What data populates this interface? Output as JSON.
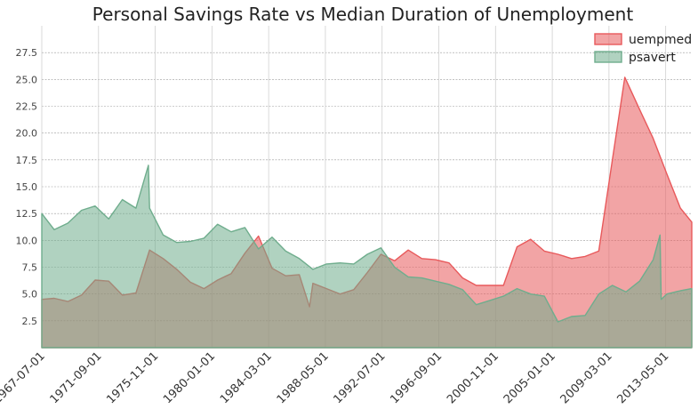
{
  "chart_data": {
    "type": "area",
    "title": "Personal Savings Rate vs Median Duration of Unemployment",
    "xlabel": "",
    "ylabel": "",
    "xlim": [
      "1967-07-01",
      "2015-04-01"
    ],
    "ylim": [
      0,
      30
    ],
    "x_ticks": [
      "1967-07-01",
      "1971-09-01",
      "1975-11-01",
      "1980-01-01",
      "1984-03-01",
      "1988-05-01",
      "1992-07-01",
      "1996-09-01",
      "2000-11-01",
      "2005-01-01",
      "2009-03-01",
      "2013-05-01"
    ],
    "y_ticks": [
      "2.5",
      "5.0",
      "7.5",
      "10.0",
      "12.5",
      "15.0",
      "17.5",
      "20.0",
      "22.5",
      "25.0",
      "27.5"
    ],
    "grid": true,
    "legend_position": "top-right",
    "series": [
      {
        "name": "uempmed",
        "color": "#e8595b",
        "points": [
          [
            "1967-07-01",
            4.5
          ],
          [
            "1968-06-01",
            4.6
          ],
          [
            "1969-06-01",
            4.3
          ],
          [
            "1970-06-01",
            4.9
          ],
          [
            "1971-06-01",
            6.3
          ],
          [
            "1972-06-01",
            6.2
          ],
          [
            "1973-06-01",
            4.9
          ],
          [
            "1974-06-01",
            5.1
          ],
          [
            "1975-06-01",
            9.1
          ],
          [
            "1976-06-01",
            8.3
          ],
          [
            "1977-06-01",
            7.3
          ],
          [
            "1978-06-01",
            6.1
          ],
          [
            "1979-06-01",
            5.5
          ],
          [
            "1980-06-01",
            6.3
          ],
          [
            "1981-06-01",
            6.9
          ],
          [
            "1982-06-01",
            8.8
          ],
          [
            "1983-06-01",
            10.4
          ],
          [
            "1984-06-01",
            7.4
          ],
          [
            "1985-06-01",
            6.7
          ],
          [
            "1986-06-01",
            6.8
          ],
          [
            "1987-03-01",
            3.8
          ],
          [
            "1987-06-01",
            6.0
          ],
          [
            "1988-06-01",
            5.5
          ],
          [
            "1989-06-01",
            5.0
          ],
          [
            "1990-06-01",
            5.4
          ],
          [
            "1991-06-01",
            7.0
          ],
          [
            "1992-06-01",
            8.7
          ],
          [
            "1993-06-01",
            8.1
          ],
          [
            "1994-06-01",
            9.1
          ],
          [
            "1995-06-01",
            8.3
          ],
          [
            "1996-06-01",
            8.2
          ],
          [
            "1997-06-01",
            7.9
          ],
          [
            "1998-06-01",
            6.5
          ],
          [
            "1999-06-01",
            5.8
          ],
          [
            "2000-06-01",
            5.8
          ],
          [
            "2001-06-01",
            5.8
          ],
          [
            "2002-06-01",
            9.4
          ],
          [
            "2003-06-01",
            10.1
          ],
          [
            "2004-06-01",
            9.0
          ],
          [
            "2005-06-01",
            8.7
          ],
          [
            "2006-06-01",
            8.3
          ],
          [
            "2007-06-01",
            8.5
          ],
          [
            "2008-06-01",
            9.0
          ],
          [
            "2009-06-01",
            17.5
          ],
          [
            "2010-05-01",
            25.2
          ],
          [
            "2011-06-01",
            22.2
          ],
          [
            "2012-06-01",
            19.5
          ],
          [
            "2013-06-01",
            16.2
          ],
          [
            "2014-06-01",
            13.0
          ],
          [
            "2015-04-01",
            11.7
          ]
        ]
      },
      {
        "name": "psavert",
        "color": "#6fad8d",
        "points": [
          [
            "1967-07-01",
            12.5
          ],
          [
            "1968-06-01",
            11.0
          ],
          [
            "1969-06-01",
            11.6
          ],
          [
            "1970-06-01",
            12.8
          ],
          [
            "1971-06-01",
            13.2
          ],
          [
            "1972-06-01",
            12.0
          ],
          [
            "1973-06-01",
            13.8
          ],
          [
            "1974-06-01",
            13.0
          ],
          [
            "1975-05-01",
            17.0
          ],
          [
            "1975-06-01",
            13.0
          ],
          [
            "1976-06-01",
            10.5
          ],
          [
            "1977-06-01",
            9.8
          ],
          [
            "1978-06-01",
            9.9
          ],
          [
            "1979-06-01",
            10.2
          ],
          [
            "1980-06-01",
            11.5
          ],
          [
            "1981-06-01",
            10.8
          ],
          [
            "1982-06-01",
            11.2
          ],
          [
            "1983-06-01",
            9.2
          ],
          [
            "1984-06-01",
            10.3
          ],
          [
            "1985-06-01",
            9.0
          ],
          [
            "1986-06-01",
            8.3
          ],
          [
            "1987-06-01",
            7.3
          ],
          [
            "1988-06-01",
            7.8
          ],
          [
            "1989-06-01",
            7.9
          ],
          [
            "1990-06-01",
            7.8
          ],
          [
            "1991-06-01",
            8.7
          ],
          [
            "1992-06-01",
            9.3
          ],
          [
            "1993-06-01",
            7.5
          ],
          [
            "1994-06-01",
            6.6
          ],
          [
            "1995-06-01",
            6.5
          ],
          [
            "1996-06-01",
            6.2
          ],
          [
            "1997-06-01",
            5.9
          ],
          [
            "1998-06-01",
            5.4
          ],
          [
            "1999-06-01",
            4.0
          ],
          [
            "2000-06-01",
            4.4
          ],
          [
            "2001-06-01",
            4.8
          ],
          [
            "2002-06-01",
            5.5
          ],
          [
            "2003-06-01",
            5.0
          ],
          [
            "2004-06-01",
            4.8
          ],
          [
            "2005-06-01",
            2.4
          ],
          [
            "2006-06-01",
            2.9
          ],
          [
            "2007-06-01",
            3.0
          ],
          [
            "2008-06-01",
            5.0
          ],
          [
            "2009-06-01",
            5.8
          ],
          [
            "2010-06-01",
            5.2
          ],
          [
            "2011-06-01",
            6.2
          ],
          [
            "2012-06-01",
            8.2
          ],
          [
            "2012-12-01",
            10.5
          ],
          [
            "2013-01-01",
            4.5
          ],
          [
            "2013-06-01",
            5.0
          ],
          [
            "2014-06-01",
            5.3
          ],
          [
            "2015-04-01",
            5.5
          ]
        ]
      }
    ]
  }
}
